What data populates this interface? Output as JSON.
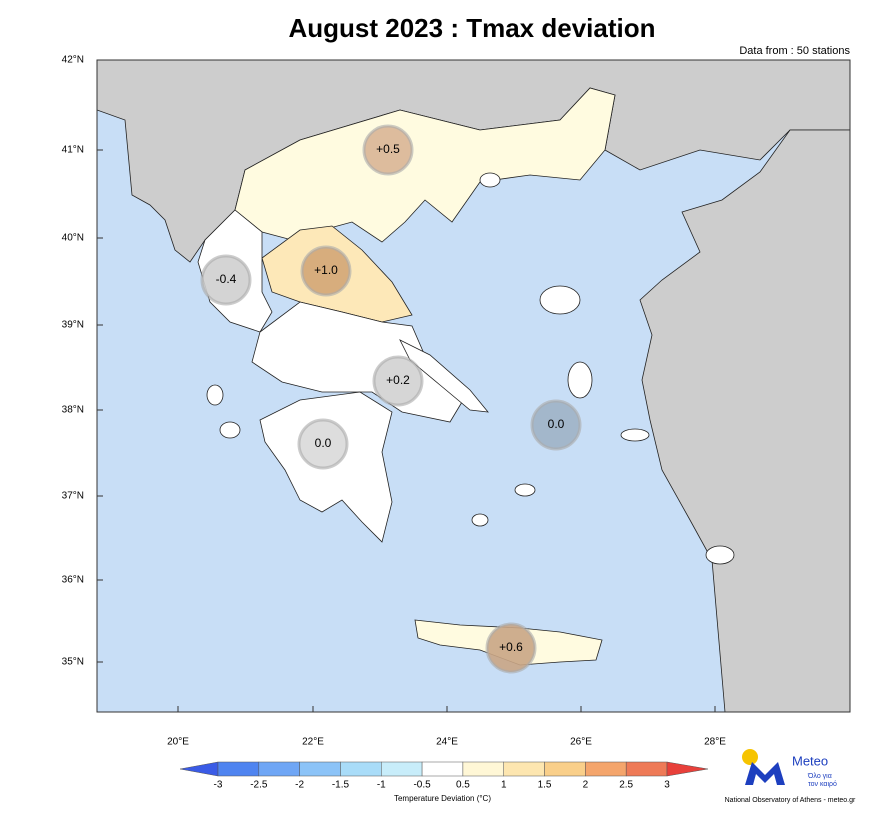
{
  "title": "August 2023 : Tmax deviation",
  "source_note": "Data from : 50 stations",
  "lat_labels": [
    "42°N",
    "41°N",
    "40°N",
    "39°N",
    "38°N",
    "37°N",
    "36°N",
    "35°N"
  ],
  "lon_labels": [
    "20°E",
    "22°E",
    "24°E",
    "26°E",
    "28°E"
  ],
  "stations": [
    {
      "label": "+0.5",
      "color": "#d9b596"
    },
    {
      "label": "+1.0",
      "color": "#d3a677"
    },
    {
      "label": "-0.4",
      "color": "#cfcfcf"
    },
    {
      "label": "+0.2",
      "color": "#d2d2d2"
    },
    {
      "label": "0.0",
      "color": "#d9d9d9"
    },
    {
      "label": "0.0",
      "color": "#9fb2c7"
    },
    {
      "label": "+0.6",
      "color": "#c9a585"
    }
  ],
  "colorbar": {
    "ticks": [
      "-3",
      "-2.5",
      "-2",
      "-1.5",
      "-1",
      "-0.5",
      "0.5",
      "1",
      "1.5",
      "2",
      "2.5",
      "3"
    ],
    "colors": [
      "#3a5be6",
      "#4f84f0",
      "#6fa6f5",
      "#8cc3f7",
      "#a9dcf8",
      "#c8edfa",
      "#ffffff",
      "#fff7d6",
      "#fde6b0",
      "#f9cf8a",
      "#f4a56c",
      "#ee7a57",
      "#e8403a"
    ],
    "label": "Temperature Deviation (°C)"
  },
  "logo": {
    "name": "Meteo",
    "tagline_1": "Όλο για",
    "tagline_2": "τον καιρό",
    "credit": "National Observatory of Athens - meteo.gr"
  }
}
